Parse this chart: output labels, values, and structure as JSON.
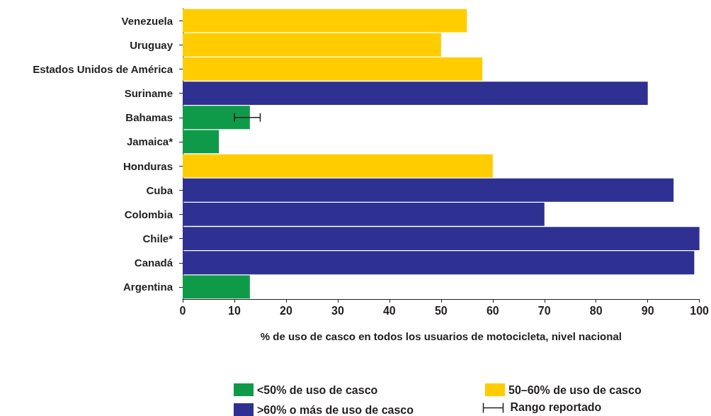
{
  "chart_data": {
    "type": "bar",
    "orientation": "horizontal",
    "stacked": true,
    "categories": [
      "Venezuela",
      "Uruguay",
      "Estados Unidos de América",
      "Suriname",
      "Bahamas",
      "Jamaica*",
      "Honduras",
      "Cuba",
      "Colombia",
      "Chile*",
      "Canadá",
      "Argentina"
    ],
    "series": [
      {
        "name": "<50% de uso de casco",
        "color": "#0f9a4a",
        "values": [
          null,
          null,
          null,
          null,
          13,
          7,
          null,
          null,
          null,
          null,
          null,
          13
        ],
        "errors": [
          null,
          null,
          null,
          null,
          [
            10,
            15
          ],
          null,
          null,
          null,
          null,
          null,
          null,
          null
        ]
      },
      {
        "name": "50–60% de uso de casco",
        "color": "#ffcc00",
        "values": [
          55,
          50,
          58,
          null,
          null,
          null,
          60,
          null,
          null,
          null,
          null,
          null
        ]
      },
      {
        "name": ">60% o más de uso de casco",
        "color": "#2e3192",
        "values": [
          null,
          null,
          null,
          90,
          null,
          null,
          null,
          95,
          70,
          100,
          99,
          null
        ]
      }
    ],
    "xlim": [
      0,
      100
    ],
    "xticks": [
      0,
      10,
      20,
      30,
      40,
      50,
      60,
      70,
      80,
      90,
      100
    ],
    "xlabel": "% de uso de casco en todos los usuarios de motocicleta, nivel nacional",
    "annotations": [
      "Rango reportado"
    ],
    "legend": "bottom",
    "grid": false
  }
}
